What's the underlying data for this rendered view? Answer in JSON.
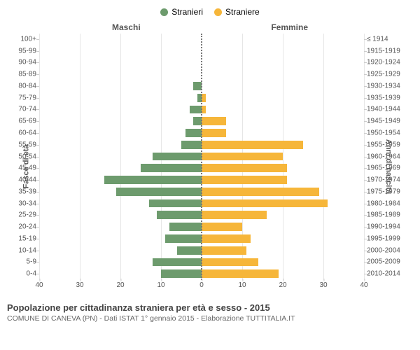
{
  "chart": {
    "type": "population-pyramid",
    "legend": [
      {
        "label": "Stranieri",
        "color": "#6d9b6d"
      },
      {
        "label": "Straniere",
        "color": "#f6b63a"
      }
    ],
    "header_male": "Maschi",
    "header_female": "Femmine",
    "y_left_title": "Fasce di età",
    "y_right_title": "Anni di nascita",
    "title": "Popolazione per cittadinanza straniera per età e sesso - 2015",
    "subtitle": "COMUNE DI CANEVA (PN) - Dati ISTAT 1° gennaio 2015 - Elaborazione TUTTITALIA.IT",
    "x_domain": [
      -40,
      40
    ],
    "x_ticks": [
      40,
      30,
      20,
      10,
      0,
      0,
      10,
      20,
      30,
      40
    ],
    "x_tick_positions_pct": [
      0,
      12.5,
      25,
      37.5,
      50,
      50,
      62.5,
      75,
      87.5,
      100
    ],
    "colors": {
      "male_bar": "#6d9b6d",
      "female_bar": "#f6b63a",
      "grid": "#e6e6e6",
      "center_line": "#777777",
      "text_primary": "#444444",
      "text_secondary": "#666666",
      "text_axis": "#555555",
      "background": "#ffffff"
    },
    "rows": [
      {
        "age": "100+",
        "birth": "≤ 1914",
        "male": 0,
        "female": 0
      },
      {
        "age": "95-99",
        "birth": "1915-1919",
        "male": 0,
        "female": 0
      },
      {
        "age": "90-94",
        "birth": "1920-1924",
        "male": 0,
        "female": 0
      },
      {
        "age": "85-89",
        "birth": "1925-1929",
        "male": 0,
        "female": 0
      },
      {
        "age": "80-84",
        "birth": "1930-1934",
        "male": 2,
        "female": 0
      },
      {
        "age": "75-79",
        "birth": "1935-1939",
        "male": 1,
        "female": 1
      },
      {
        "age": "70-74",
        "birth": "1940-1944",
        "male": 3,
        "female": 1
      },
      {
        "age": "65-69",
        "birth": "1945-1949",
        "male": 2,
        "female": 6
      },
      {
        "age": "60-64",
        "birth": "1950-1954",
        "male": 4,
        "female": 6
      },
      {
        "age": "55-59",
        "birth": "1955-1959",
        "male": 5,
        "female": 25
      },
      {
        "age": "50-54",
        "birth": "1960-1964",
        "male": 12,
        "female": 20
      },
      {
        "age": "45-49",
        "birth": "1965-1969",
        "male": 15,
        "female": 21
      },
      {
        "age": "40-44",
        "birth": "1970-1974",
        "male": 24,
        "female": 21
      },
      {
        "age": "35-39",
        "birth": "1975-1979",
        "male": 21,
        "female": 29
      },
      {
        "age": "30-34",
        "birth": "1980-1984",
        "male": 13,
        "female": 31
      },
      {
        "age": "25-29",
        "birth": "1985-1989",
        "male": 11,
        "female": 16
      },
      {
        "age": "20-24",
        "birth": "1990-1994",
        "male": 8,
        "female": 10
      },
      {
        "age": "15-19",
        "birth": "1995-1999",
        "male": 9,
        "female": 12
      },
      {
        "age": "10-14",
        "birth": "2000-2004",
        "male": 6,
        "female": 11
      },
      {
        "age": "5-9",
        "birth": "2005-2009",
        "male": 12,
        "female": 14
      },
      {
        "age": "0-4",
        "birth": "2010-2014",
        "male": 10,
        "female": 19
      }
    ]
  }
}
